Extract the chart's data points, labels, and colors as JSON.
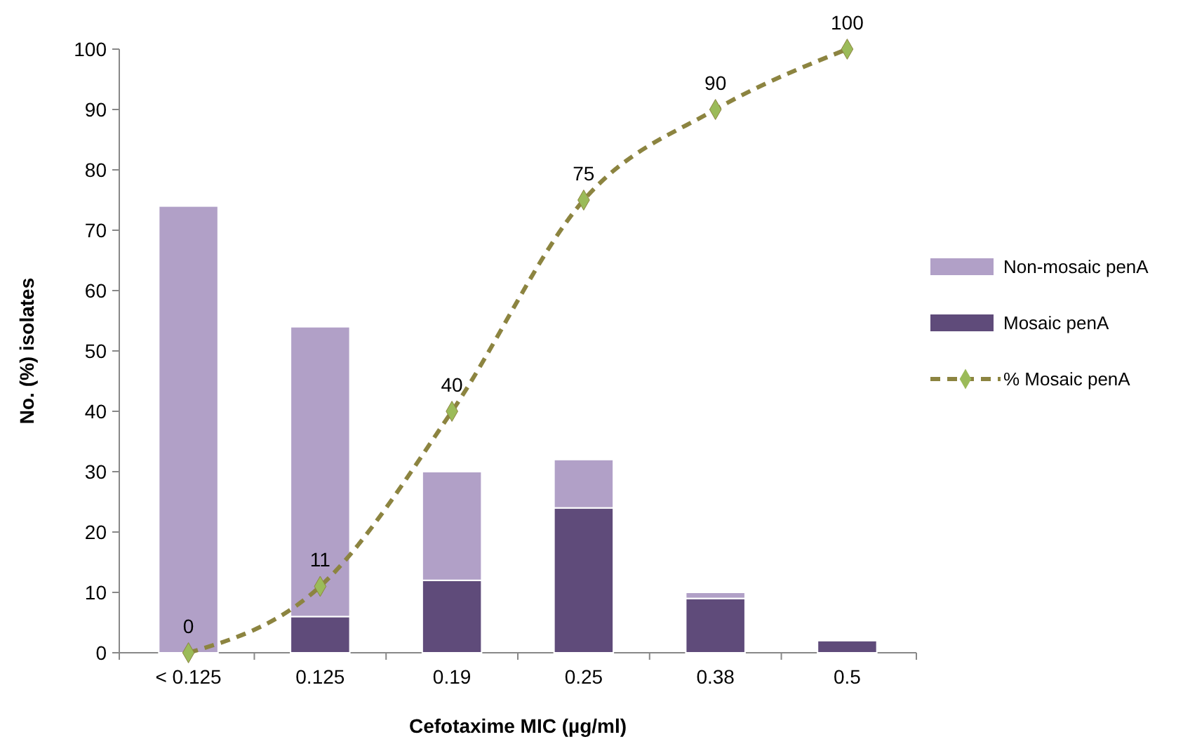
{
  "chart_data": {
    "type": "bar",
    "xlabel": "Cefotaxime MIC (µg/ml)",
    "ylabel": "No. (%) isolates",
    "categories": [
      "< 0.125",
      "0.125",
      "0.19",
      "0.25",
      "0.38",
      "0.5"
    ],
    "stacked": true,
    "ylim": [
      0,
      100
    ],
    "yticks": [
      0,
      10,
      20,
      30,
      40,
      50,
      60,
      70,
      80,
      90,
      100
    ],
    "grid": false,
    "legend": "right",
    "series": [
      {
        "name": "Mosaic penA",
        "color": "#5f4b7a",
        "values": [
          0,
          6,
          12,
          24,
          9,
          2
        ]
      },
      {
        "name": "Non-mosaic penA",
        "color": "#b1a0c7",
        "values": [
          74,
          48,
          18,
          8,
          1,
          0
        ]
      },
      {
        "name": "% Mosaic penA",
        "type": "line",
        "color": "#8c8440",
        "marker": "diamond",
        "line_style": "dashed",
        "values": [
          0,
          11,
          40,
          75,
          90,
          100
        ],
        "value_labels": [
          "0",
          "11",
          "40",
          "75",
          "90",
          "100"
        ]
      }
    ]
  }
}
